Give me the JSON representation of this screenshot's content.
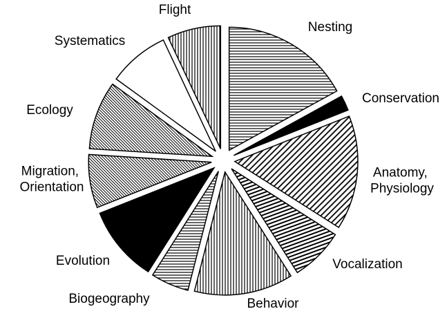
{
  "chart_data": {
    "type": "pie",
    "categories": [
      "Nesting",
      "Conservation",
      "Anatomy, Physiology",
      "Vocalization",
      "Behavior",
      "Biogeography",
      "Evolution",
      "Migration, Orientation",
      "Ecology",
      "Systematics",
      "Flight"
    ],
    "values": [
      17,
      2,
      15,
      7,
      13,
      5,
      10,
      7,
      9,
      8,
      7
    ],
    "patterns": [
      "horizontal",
      "solid",
      "diagonal",
      "horizontal-tilt",
      "vertical",
      "horizontal",
      "solid",
      "diagonal-fine",
      "diagonal-fine",
      "empty",
      "vertical"
    ],
    "exploded": true
  }
}
